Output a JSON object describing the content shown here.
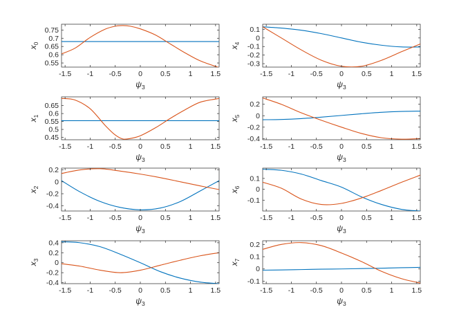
{
  "colors": {
    "series_blue": "#0072BD",
    "series_orange": "#D95319",
    "axes": "#262626",
    "background": "#ffffff"
  },
  "chart_data": [
    {
      "type": "line",
      "xlabel": "ψ3",
      "ylabel": "x0",
      "xlim": [
        -1.5708,
        1.5708
      ],
      "ylim": [
        0.525,
        0.785
      ],
      "xticks": [
        "-1.5",
        "-1",
        "-0.5",
        "0",
        "0.5",
        "1",
        "1.5"
      ],
      "yticks": [
        "0.55",
        "0.6",
        "0.65",
        "0.7",
        "0.75"
      ],
      "x": [
        -1.5708,
        -1.3,
        -1.0,
        -0.7,
        -0.5,
        -0.35,
        -0.2,
        0.0,
        0.3,
        0.6,
        0.9,
        1.2,
        1.5708
      ],
      "series": [
        {
          "color": "#0072BD",
          "values": [
            0.68,
            0.68,
            0.68,
            0.68,
            0.68,
            0.68,
            0.68,
            0.68,
            0.68,
            0.68,
            0.68,
            0.68,
            0.68
          ]
        },
        {
          "color": "#D95319",
          "values": [
            0.605,
            0.64,
            0.705,
            0.755,
            0.773,
            0.777,
            0.773,
            0.757,
            0.72,
            0.665,
            0.61,
            0.562,
            0.522
          ]
        }
      ]
    },
    {
      "type": "line",
      "xlabel": "ψ3",
      "ylabel": "x4",
      "xlim": [
        -1.5708,
        1.5708
      ],
      "ylim": [
        -0.34,
        0.16
      ],
      "xticks": [
        "-1.5",
        "-1",
        "-0.5",
        "0",
        "0.5",
        "1",
        "1.5"
      ],
      "yticks": [
        "0.1",
        "0",
        "-0.1",
        "-0.2",
        "-0.3"
      ],
      "x": [
        -1.5708,
        -1.2,
        -0.8,
        -0.4,
        0.0,
        0.4,
        0.8,
        1.2,
        1.5708
      ],
      "series": [
        {
          "color": "#0072BD",
          "values": [
            0.13,
            0.115,
            0.09,
            0.05,
            0.0,
            -0.05,
            -0.085,
            -0.105,
            -0.105
          ]
        },
        {
          "color": "#D95319",
          "values": [
            0.13,
            0.0,
            -0.14,
            -0.26,
            -0.33,
            -0.33,
            -0.26,
            -0.16,
            -0.07
          ]
        }
      ]
    },
    {
      "type": "line",
      "xlabel": "ψ3",
      "ylabel": "x1",
      "xlim": [
        -1.5708,
        1.5708
      ],
      "ylim": [
        0.435,
        0.705
      ],
      "xticks": [
        "-1.5",
        "-1",
        "-0.5",
        "0",
        "0.5",
        "1",
        "1.5"
      ],
      "yticks": [
        "0.45",
        "0.5",
        "0.55",
        "0.6",
        "0.65"
      ],
      "x": [
        -1.5708,
        -1.3,
        -1.0,
        -0.7,
        -0.5,
        -0.35,
        -0.2,
        0.0,
        0.3,
        0.6,
        0.9,
        1.2,
        1.5708
      ],
      "series": [
        {
          "color": "#0072BD",
          "values": [
            0.555,
            0.555,
            0.555,
            0.555,
            0.555,
            0.555,
            0.555,
            0.555,
            0.555,
            0.555,
            0.555,
            0.555,
            0.555
          ]
        },
        {
          "color": "#D95319",
          "values": [
            0.695,
            0.685,
            0.63,
            0.525,
            0.465,
            0.44,
            0.443,
            0.46,
            0.51,
            0.57,
            0.625,
            0.672,
            0.695
          ]
        }
      ]
    },
    {
      "type": "line",
      "xlabel": "ψ3",
      "ylabel": "x5",
      "xlim": [
        -1.5708,
        1.5708
      ],
      "ylim": [
        -0.42,
        0.33
      ],
      "xticks": [
        "-1.5",
        "-1",
        "-0.5",
        "0",
        "0.5",
        "1",
        "1.5"
      ],
      "yticks": [
        "0.2",
        "0",
        "-0.2",
        "-0.4"
      ],
      "x": [
        -1.5708,
        -1.2,
        -0.8,
        -0.4,
        0.0,
        0.4,
        0.8,
        1.2,
        1.5708
      ],
      "series": [
        {
          "color": "#0072BD",
          "values": [
            -0.07,
            -0.065,
            -0.05,
            -0.025,
            0.005,
            0.035,
            0.06,
            0.075,
            0.08
          ]
        },
        {
          "color": "#D95319",
          "values": [
            0.31,
            0.2,
            0.05,
            -0.08,
            -0.2,
            -0.31,
            -0.385,
            -0.41,
            -0.4
          ]
        }
      ]
    },
    {
      "type": "line",
      "xlabel": "ψ3",
      "ylabel": "x2",
      "xlim": [
        -1.5708,
        1.5708
      ],
      "ylim": [
        -0.49,
        0.23
      ],
      "xticks": [
        "-1.5",
        "-1",
        "-0.5",
        "0",
        "0.5",
        "1",
        "1.5"
      ],
      "yticks": [
        "0.2",
        "0",
        "-0.2",
        "-0.4"
      ],
      "x": [
        -1.5708,
        -1.2,
        -0.8,
        -0.4,
        0.0,
        0.4,
        0.8,
        1.2,
        1.5708
      ],
      "series": [
        {
          "color": "#0072BD",
          "values": [
            0.02,
            -0.17,
            -0.33,
            -0.43,
            -0.47,
            -0.44,
            -0.33,
            -0.15,
            0.02
          ]
        },
        {
          "color": "#D95319",
          "values": [
            0.14,
            0.2,
            0.22,
            0.18,
            0.13,
            0.07,
            0.0,
            -0.07,
            -0.13
          ]
        }
      ]
    },
    {
      "type": "line",
      "xlabel": "ψ3",
      "ylabel": "x6",
      "xlim": [
        -1.5708,
        1.5708
      ],
      "ylim": [
        -0.2,
        0.195
      ],
      "xticks": [
        "-1.5",
        "-1",
        "-0.5",
        "0",
        "0.5",
        "1",
        "1.5"
      ],
      "yticks": [
        "0.1",
        "0",
        "-0.1"
      ],
      "x": [
        -1.5708,
        -1.2,
        -0.8,
        -0.4,
        0.0,
        0.4,
        0.8,
        1.2,
        1.5708
      ],
      "series": [
        {
          "color": "#0072BD",
          "values": [
            0.185,
            0.175,
            0.14,
            0.08,
            0.02,
            -0.07,
            -0.14,
            -0.185,
            -0.2
          ]
        },
        {
          "color": "#D95319",
          "values": [
            0.065,
            0.01,
            -0.09,
            -0.14,
            -0.13,
            -0.08,
            -0.01,
            0.065,
            0.13
          ]
        }
      ]
    },
    {
      "type": "line",
      "xlabel": "ψ3",
      "ylabel": "x3",
      "xlim": [
        -1.5708,
        1.5708
      ],
      "ylim": [
        -0.42,
        0.44
      ],
      "xticks": [
        "-1.5",
        "-1",
        "-0.5",
        "0",
        "0.5",
        "1",
        "1.5"
      ],
      "yticks": [
        "0.4",
        "0.2",
        "0",
        "-0.2",
        "-0.4"
      ],
      "x": [
        -1.5708,
        -1.2,
        -0.8,
        -0.4,
        0.0,
        0.4,
        0.8,
        1.2,
        1.5708
      ],
      "series": [
        {
          "color": "#0072BD",
          "values": [
            0.42,
            0.4,
            0.32,
            0.17,
            0.0,
            -0.18,
            -0.31,
            -0.39,
            -0.42
          ]
        },
        {
          "color": "#D95319",
          "values": [
            -0.02,
            -0.07,
            -0.15,
            -0.2,
            -0.15,
            -0.05,
            0.05,
            0.14,
            0.2
          ]
        }
      ]
    },
    {
      "type": "line",
      "xlabel": "ψ3",
      "ylabel": "x7",
      "xlim": [
        -1.5708,
        1.5708
      ],
      "ylim": [
        -0.12,
        0.23
      ],
      "xticks": [
        "-1.5",
        "-1",
        "-0.5",
        "0",
        "0.5",
        "1",
        "1.5"
      ],
      "yticks": [
        "0.2",
        "0.1",
        "0",
        "-0.1"
      ],
      "x": [
        -1.5708,
        -1.2,
        -0.8,
        -0.4,
        0.0,
        0.4,
        0.8,
        1.2,
        1.5708
      ],
      "series": [
        {
          "color": "#0072BD",
          "values": [
            -0.01,
            -0.008,
            -0.005,
            -0.002,
            0.0,
            0.003,
            0.006,
            0.01,
            0.013
          ]
        },
        {
          "color": "#D95319",
          "values": [
            0.16,
            0.2,
            0.215,
            0.19,
            0.13,
            0.06,
            -0.02,
            -0.08,
            -0.115
          ]
        }
      ]
    }
  ]
}
